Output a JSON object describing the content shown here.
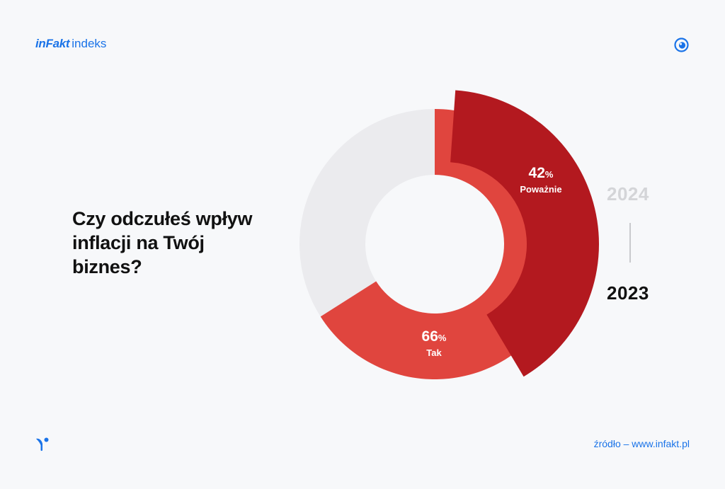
{
  "brand": {
    "name": "inFakt",
    "suffix": "indeks",
    "accent_color": "#1a73e8"
  },
  "icons": {
    "top_right": "eye-icon",
    "bottom_left": "bird-logo-icon"
  },
  "question": "Czy odczułeś wpływ inflacji na Twój biznes?",
  "years": {
    "inactive": "2024",
    "active": "2023"
  },
  "source": "źródło – www.infakt.pl",
  "chart_data": {
    "type": "pie",
    "title": "",
    "series": [
      {
        "label": "Tak",
        "value": 66,
        "display": "66",
        "unit": "%",
        "color": "#e0453e"
      },
      {
        "label": "",
        "value": 34,
        "color": "#ebebee"
      }
    ],
    "highlight": {
      "label": "Poważnie",
      "value": 42,
      "display": "42",
      "unit": "%",
      "color": "#b3191f"
    }
  }
}
